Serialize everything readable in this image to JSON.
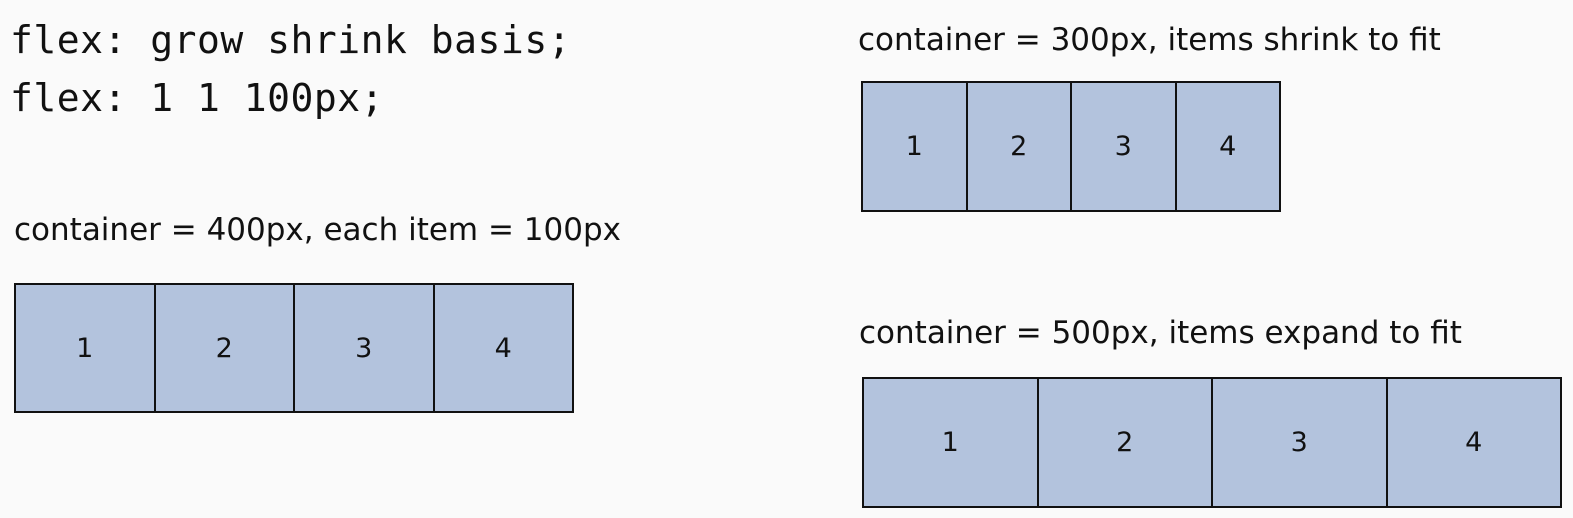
{
  "code": {
    "line1": "flex: grow shrink basis;",
    "line2": "flex: 1 1 100px;"
  },
  "examples": [
    {
      "caption": "container = 400px, each item = 100px",
      "items": [
        "1",
        "2",
        "3",
        "4"
      ]
    },
    {
      "caption": "container = 300px, items shrink to fit",
      "items": [
        "1",
        "2",
        "3",
        "4"
      ]
    },
    {
      "caption": "container = 500px, items expand to fit",
      "items": [
        "1",
        "2",
        "3",
        "4"
      ]
    }
  ],
  "colors": {
    "item_fill": "#b3c3dd",
    "border": "#111111",
    "background": "#fafafa"
  }
}
